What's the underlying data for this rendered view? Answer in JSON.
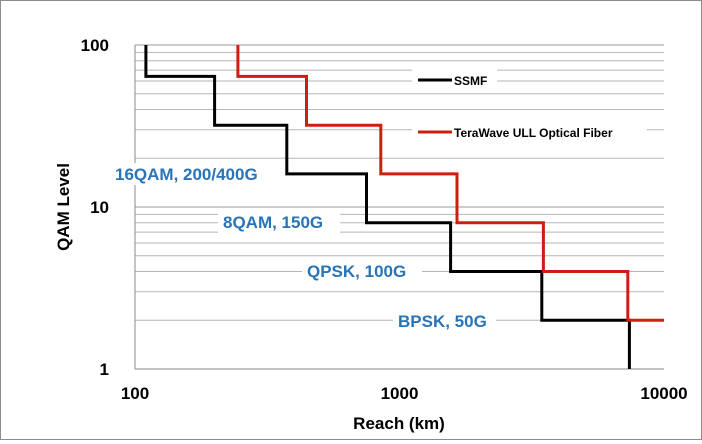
{
  "chart_data": {
    "type": "line",
    "title": "",
    "xlabel": "Reach (km)",
    "ylabel": "QAM Level",
    "x_scale": "log",
    "y_scale": "log",
    "xlim": [
      100,
      10000
    ],
    "ylim": [
      1,
      100
    ],
    "x_ticks": [
      "100",
      "1000",
      "10000"
    ],
    "y_ticks": [
      "1",
      "10",
      "100"
    ],
    "grid": "horizontal log minor",
    "legend_position": "upper-right inside plot",
    "series": [
      {
        "name": "SSMF",
        "color": "#000000",
        "x": [
          110,
          110,
          200,
          200,
          375,
          375,
          750,
          750,
          1560,
          1560,
          3450,
          3450,
          7400,
          7400
        ],
        "y": [
          100,
          64,
          64,
          32,
          32,
          16,
          16,
          8,
          8,
          4,
          4,
          2,
          2,
          1
        ]
      },
      {
        "name": "TeraWave ULL Optical Fiber",
        "color": "#cc1f0f",
        "x": [
          245,
          245,
          445,
          445,
          850,
          850,
          1650,
          1650,
          3500,
          3500,
          7300,
          7300,
          10000
        ],
        "y": [
          100,
          64,
          64,
          32,
          32,
          16,
          16,
          8,
          8,
          4,
          4,
          2,
          2
        ]
      }
    ],
    "annotations": [
      {
        "text": "16QAM, 200/400G",
        "color": "#2874b9"
      },
      {
        "text": "8QAM, 150G",
        "color": "#2874b9"
      },
      {
        "text": "QPSK, 100G",
        "color": "#2874b9"
      },
      {
        "text": "BPSK, 50G",
        "color": "#2874b9"
      }
    ]
  }
}
